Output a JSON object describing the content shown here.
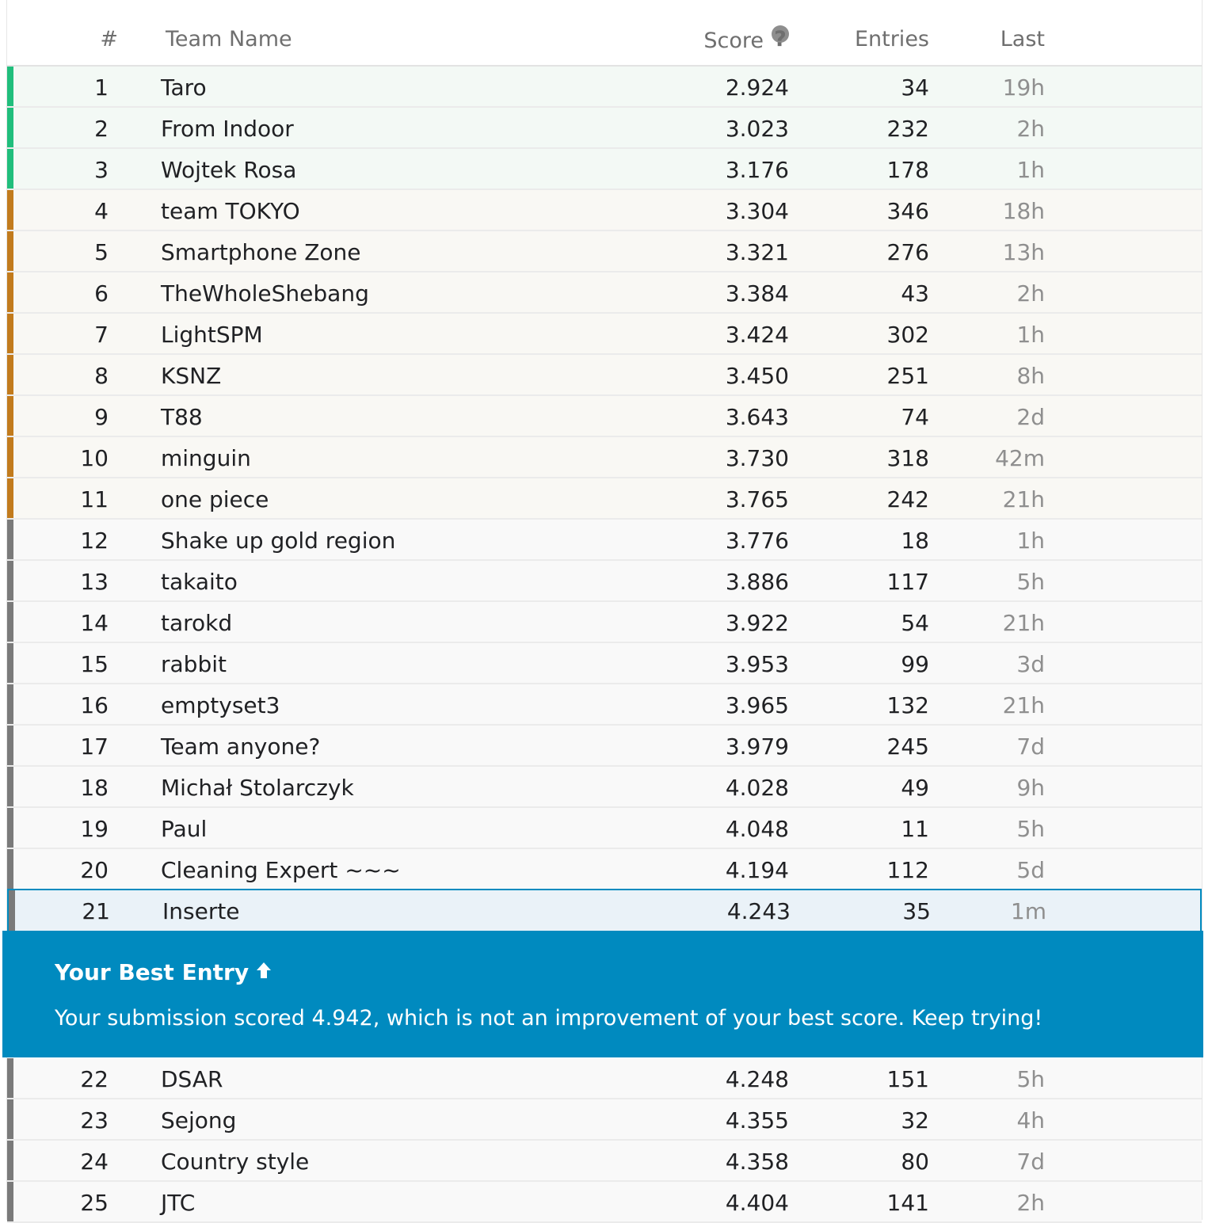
{
  "header": {
    "rank": "#",
    "team": "Team Name",
    "score": "Score",
    "entries": "Entries",
    "last": "Last"
  },
  "colors": {
    "gold": "#20be7c",
    "silver": "#c27b1d",
    "bronze": "#7a7a7a",
    "highlight": "#008abf"
  },
  "rows": [
    {
      "rank": "1",
      "team": "Taro",
      "score": "2.924",
      "entries": "34",
      "last": "19h",
      "tier": "gold"
    },
    {
      "rank": "2",
      "team": "From Indoor",
      "score": "3.023",
      "entries": "232",
      "last": "2h",
      "tier": "gold"
    },
    {
      "rank": "3",
      "team": "Wojtek Rosa",
      "score": "3.176",
      "entries": "178",
      "last": "1h",
      "tier": "gold"
    },
    {
      "rank": "4",
      "team": "team TOKYO",
      "score": "3.304",
      "entries": "346",
      "last": "18h",
      "tier": "silver"
    },
    {
      "rank": "5",
      "team": "Smartphone Zone",
      "score": "3.321",
      "entries": "276",
      "last": "13h",
      "tier": "silver"
    },
    {
      "rank": "6",
      "team": "TheWholeShebang",
      "score": "3.384",
      "entries": "43",
      "last": "2h",
      "tier": "silver"
    },
    {
      "rank": "7",
      "team": "LightSPM",
      "score": "3.424",
      "entries": "302",
      "last": "1h",
      "tier": "silver"
    },
    {
      "rank": "8",
      "team": "KSNZ",
      "score": "3.450",
      "entries": "251",
      "last": "8h",
      "tier": "silver"
    },
    {
      "rank": "9",
      "team": "T88",
      "score": "3.643",
      "entries": "74",
      "last": "2d",
      "tier": "silver"
    },
    {
      "rank": "10",
      "team": "minguin",
      "score": "3.730",
      "entries": "318",
      "last": "42m",
      "tier": "silver"
    },
    {
      "rank": "11",
      "team": "one piece",
      "score": "3.765",
      "entries": "242",
      "last": "21h",
      "tier": "silver"
    },
    {
      "rank": "12",
      "team": "Shake up gold region",
      "score": "3.776",
      "entries": "18",
      "last": "1h",
      "tier": "bronze"
    },
    {
      "rank": "13",
      "team": "takaito",
      "score": "3.886",
      "entries": "117",
      "last": "5h",
      "tier": "bronze"
    },
    {
      "rank": "14",
      "team": "tarokd",
      "score": "3.922",
      "entries": "54",
      "last": "21h",
      "tier": "bronze"
    },
    {
      "rank": "15",
      "team": "rabbit",
      "score": "3.953",
      "entries": "99",
      "last": "3d",
      "tier": "bronze"
    },
    {
      "rank": "16",
      "team": "emptyset3",
      "score": "3.965",
      "entries": "132",
      "last": "21h",
      "tier": "bronze"
    },
    {
      "rank": "17",
      "team": "Team anyone?",
      "score": "3.979",
      "entries": "245",
      "last": "7d",
      "tier": "bronze"
    },
    {
      "rank": "18",
      "team": "Michał Stolarczyk",
      "score": "4.028",
      "entries": "49",
      "last": "9h",
      "tier": "bronze"
    },
    {
      "rank": "19",
      "team": "Paul",
      "score": "4.048",
      "entries": "11",
      "last": "5h",
      "tier": "bronze"
    },
    {
      "rank": "20",
      "team": "Cleaning Expert ~~~",
      "score": "4.194",
      "entries": "112",
      "last": "5d",
      "tier": "bronze"
    },
    {
      "rank": "21",
      "team": "Inserte",
      "score": "4.243",
      "entries": "35",
      "last": "1m",
      "tier": "bronze",
      "self": true
    },
    {
      "rank": "22",
      "team": "DSAR",
      "score": "4.248",
      "entries": "151",
      "last": "5h",
      "tier": "bronze"
    },
    {
      "rank": "23",
      "team": "Sejong",
      "score": "4.355",
      "entries": "32",
      "last": "4h",
      "tier": "bronze"
    },
    {
      "rank": "24",
      "team": "Country style",
      "score": "4.358",
      "entries": "80",
      "last": "7d",
      "tier": "bronze"
    },
    {
      "rank": "25",
      "team": "JTC",
      "score": "4.404",
      "entries": "141",
      "last": "2h",
      "tier": "bronze"
    }
  ],
  "banner": {
    "title": "Your Best Entry",
    "icon": "arrow-up-icon",
    "message": "Your submission scored 4.942, which is not an improvement of your best score. Keep trying!"
  }
}
